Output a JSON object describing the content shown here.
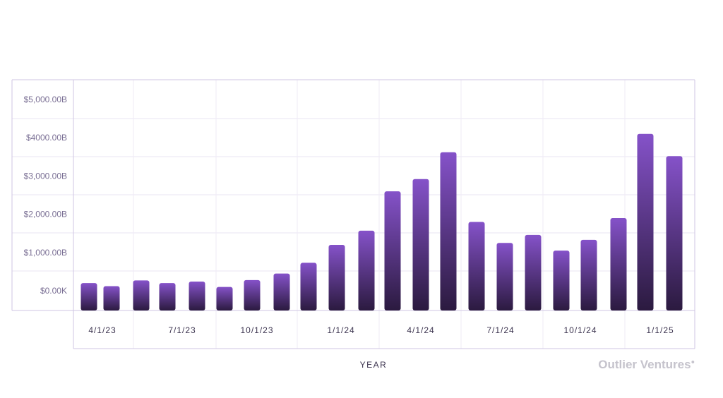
{
  "chart_data": {
    "type": "bar",
    "xlabel": "YEAR",
    "ylabel": "",
    "y_ticks": [
      "$0.00K",
      "$1,000.00B",
      "$2,000.00B",
      "$3,000.00B",
      "$4000.00B",
      "$5,000.00B"
    ],
    "y_tick_values": [
      0,
      1000,
      2000,
      3000,
      4000,
      5000
    ],
    "ylim": [
      -500,
      5500
    ],
    "x_tick_labels": [
      "4/1/23",
      "7/1/23",
      "10/1/23",
      "1/1/24",
      "4/1/24",
      "7/1/24",
      "10/1/24",
      "1/1/25"
    ],
    "grid": true,
    "bar_color_top": "#8552c9",
    "bar_color_bottom": "#2b1a3f",
    "values": [
      200,
      120,
      270,
      200,
      240,
      100,
      280,
      450,
      730,
      1200,
      1570,
      2600,
      2920,
      3620,
      1800,
      1250,
      1460,
      1050,
      1330,
      1900,
      4100,
      3520
    ]
  },
  "brand": {
    "name": "Outlier Ventures",
    "mark": "●"
  }
}
